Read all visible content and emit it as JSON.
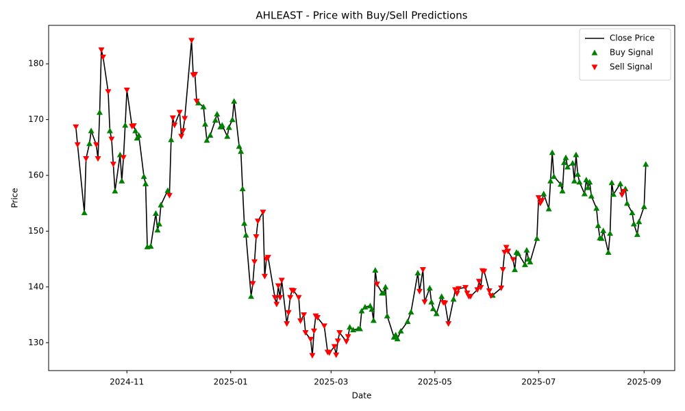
{
  "chart_data": {
    "type": "line",
    "title": "AHLEAST - Price with Buy/Sell Predictions",
    "x_label": "Date",
    "y_label": "Price",
    "xlim": [
      "2024-09-16",
      "2025-09-19"
    ],
    "ylim": [
      125,
      186.9
    ],
    "xticks": [
      {
        "value": "2024-11-01",
        "label": "2024-11"
      },
      {
        "value": "2025-01-01",
        "label": "2025-01"
      },
      {
        "value": "2025-03-01",
        "label": "2025-03"
      },
      {
        "value": "2025-05-01",
        "label": "2025-05"
      },
      {
        "value": "2025-07-01",
        "label": "2025-07"
      },
      {
        "value": "2025-09-01",
        "label": "2025-09"
      }
    ],
    "yticks": [
      130,
      140,
      150,
      160,
      170,
      180
    ],
    "grid": false,
    "legend": "upper right",
    "x": [
      "2024-10-02",
      "2024-10-03",
      "2024-10-07",
      "2024-10-08",
      "2024-10-10",
      "2024-10-11",
      "2024-10-14",
      "2024-10-15",
      "2024-10-16",
      "2024-10-17",
      "2024-10-18",
      "2024-10-21",
      "2024-10-22",
      "2024-10-23",
      "2024-10-24",
      "2024-10-25",
      "2024-10-28",
      "2024-10-29",
      "2024-10-30",
      "2024-10-31",
      "2024-11-01",
      "2024-11-04",
      "2024-11-05",
      "2024-11-06",
      "2024-11-07",
      "2024-11-08",
      "2024-11-11",
      "2024-11-12",
      "2024-11-13",
      "2024-11-15",
      "2024-11-18",
      "2024-11-19",
      "2024-11-20",
      "2024-11-21",
      "2024-11-25",
      "2024-11-26",
      "2024-11-27",
      "2024-11-28",
      "2024-11-29",
      "2024-12-02",
      "2024-12-03",
      "2024-12-04",
      "2024-12-05",
      "2024-12-09",
      "2024-12-10",
      "2024-12-11",
      "2024-12-12",
      "2024-12-13",
      "2024-12-16",
      "2024-12-17",
      "2024-12-18",
      "2024-12-20",
      "2024-12-23",
      "2024-12-24",
      "2024-12-26",
      "2024-12-27",
      "2024-12-30",
      "2024-12-31",
      "2025-01-02",
      "2025-01-03",
      "2025-01-06",
      "2025-01-07",
      "2025-01-08",
      "2025-01-09",
      "2025-01-10",
      "2025-01-13",
      "2025-01-14",
      "2025-01-15",
      "2025-01-16",
      "2025-01-17",
      "2025-01-20",
      "2025-01-21",
      "2025-01-22",
      "2025-01-23",
      "2025-01-27",
      "2025-01-28",
      "2025-01-29",
      "2025-01-30",
      "2025-01-31",
      "2025-02-03",
      "2025-02-04",
      "2025-02-05",
      "2025-02-06",
      "2025-02-07",
      "2025-02-10",
      "2025-02-11",
      "2025-02-13",
      "2025-02-14",
      "2025-02-17",
      "2025-02-18",
      "2025-02-19",
      "2025-02-20",
      "2025-02-21",
      "2025-02-25",
      "2025-02-27",
      "2025-02-28",
      "2025-03-03",
      "2025-03-04",
      "2025-03-05",
      "2025-03-06",
      "2025-03-10",
      "2025-03-11",
      "2025-03-12",
      "2025-03-14",
      "2025-03-17",
      "2025-03-18",
      "2025-03-19",
      "2025-03-21",
      "2025-03-24",
      "2025-03-25",
      "2025-03-26",
      "2025-03-27",
      "2025-03-28",
      "2025-03-31",
      "2025-04-01",
      "2025-04-02",
      "2025-04-03",
      "2025-04-07",
      "2025-04-08",
      "2025-04-09",
      "2025-04-11",
      "2025-04-15",
      "2025-04-17",
      "2025-04-21",
      "2025-04-22",
      "2025-04-24",
      "2025-04-25",
      "2025-04-28",
      "2025-04-29",
      "2025-04-30",
      "2025-05-02",
      "2025-05-05",
      "2025-05-06",
      "2025-05-07",
      "2025-05-09",
      "2025-05-12",
      "2025-05-13",
      "2025-05-14",
      "2025-05-15",
      "2025-05-19",
      "2025-05-20",
      "2025-05-21",
      "2025-05-22",
      "2025-05-26",
      "2025-05-27",
      "2025-05-28",
      "2025-05-29",
      "2025-05-30",
      "2025-06-02",
      "2025-06-03",
      "2025-06-04",
      "2025-06-09",
      "2025-06-10",
      "2025-06-11",
      "2025-06-12",
      "2025-06-13",
      "2025-06-16",
      "2025-06-17",
      "2025-06-18",
      "2025-06-19",
      "2025-06-23",
      "2025-06-24",
      "2025-06-25",
      "2025-06-26",
      "2025-06-30",
      "2025-07-01",
      "2025-07-02",
      "2025-07-03",
      "2025-07-04",
      "2025-07-07",
      "2025-07-08",
      "2025-07-09",
      "2025-07-10",
      "2025-07-14",
      "2025-07-15",
      "2025-07-16",
      "2025-07-17",
      "2025-07-18",
      "2025-07-21",
      "2025-07-22",
      "2025-07-23",
      "2025-07-24",
      "2025-07-25",
      "2025-07-28",
      "2025-07-29",
      "2025-07-30",
      "2025-07-31",
      "2025-08-01",
      "2025-08-04",
      "2025-08-05",
      "2025-08-06",
      "2025-08-07",
      "2025-08-08",
      "2025-08-11",
      "2025-08-12",
      "2025-08-13",
      "2025-08-14",
      "2025-08-18",
      "2025-08-19",
      "2025-08-20",
      "2025-08-21",
      "2025-08-22",
      "2025-08-25",
      "2025-08-26",
      "2025-08-28",
      "2025-08-29",
      "2025-09-01",
      "2025-09-02"
    ],
    "series": [
      {
        "name": "Close Price",
        "type": "line",
        "color": "#000000",
        "values": [
          168.7,
          165.5,
          153.3,
          163,
          165.7,
          168,
          165.5,
          163,
          171.3,
          182.5,
          181.2,
          175,
          168,
          166.5,
          162,
          157.2,
          163.7,
          159,
          163.2,
          169,
          175.3,
          168.8,
          168.9,
          168,
          166.7,
          167.2,
          159.8,
          158.5,
          147.2,
          147.3,
          153.2,
          150.2,
          151.3,
          154.7,
          157.3,
          156.4,
          166.4,
          170.3,
          169,
          171.3,
          167,
          168,
          170.2,
          184.2,
          178,
          178.1,
          173.3,
          173,
          172.3,
          169.2,
          166.3,
          167.2,
          169.9,
          171,
          168.7,
          169,
          167,
          168.6,
          170,
          173.3,
          165.2,
          164.3,
          157.6,
          151.4,
          149.3,
          138.3,
          140.6,
          144.5,
          149,
          151.8,
          153.4,
          141.9,
          145,
          145.3,
          138.1,
          136.9,
          140.2,
          138.1,
          141.2,
          133.4,
          135.4,
          138.1,
          139.4,
          139.3,
          138.1,
          133.9,
          135,
          131.8,
          130.6,
          127.7,
          132.1,
          134.8,
          134.5,
          133,
          128.3,
          128.2,
          129.3,
          127.8,
          130.3,
          131.8,
          130.2,
          131.1,
          132.8,
          132.3,
          132.5,
          132.5,
          135.7,
          136.4,
          136.6,
          136,
          134,
          143,
          140.5,
          138.9,
          138.9,
          140,
          134.8,
          131,
          131.4,
          130.7,
          132.1,
          133.8,
          135.5,
          142.5,
          139.2,
          143.1,
          137.3,
          139.8,
          137.3,
          136.1,
          135.2,
          138.3,
          137.2,
          137.1,
          133.4,
          137.8,
          139.5,
          138.8,
          139.7,
          139.9,
          138.9,
          138.3,
          138.3,
          139.5,
          141,
          139.9,
          142.9,
          142.8,
          139.3,
          138.4,
          138.5,
          139.8,
          143.1,
          146.2,
          147.1,
          146.4,
          144.9,
          143.1,
          146.2,
          146,
          144,
          146.6,
          145,
          144.5,
          148.7,
          156,
          155,
          155.5,
          156.7,
          154,
          159,
          164.1,
          159.8,
          158.4,
          157.2,
          162.3,
          163.2,
          161.5,
          162.2,
          159,
          163.7,
          160.2,
          158.8,
          156.7,
          159.2,
          157.8,
          158.8,
          156.3,
          154.1,
          151,
          148.8,
          148.7,
          150.1,
          146.2,
          149.6,
          158.7,
          156.6,
          158.5,
          156.5,
          157.1,
          157.6,
          155,
          153.3,
          151.3,
          149.4,
          151.7,
          154.4,
          162
        ]
      },
      {
        "name": "Buy Signal",
        "type": "scatter",
        "marker": "triangle-up",
        "color": "#008000",
        "values": [
          null,
          null,
          153.3,
          null,
          165.7,
          168,
          null,
          null,
          171.3,
          null,
          null,
          null,
          168,
          null,
          null,
          157.2,
          163.7,
          159,
          null,
          169,
          null,
          null,
          null,
          168,
          166.7,
          167.2,
          159.8,
          158.5,
          147.2,
          147.3,
          153.2,
          150.2,
          151.3,
          154.7,
          157.3,
          null,
          166.4,
          null,
          null,
          null,
          null,
          null,
          null,
          null,
          null,
          null,
          null,
          173,
          172.3,
          169.2,
          166.3,
          167.2,
          169.9,
          171,
          168.7,
          169,
          167,
          168.6,
          170,
          173.3,
          165.2,
          164.3,
          157.6,
          151.4,
          149.3,
          138.3,
          null,
          null,
          null,
          null,
          null,
          null,
          null,
          null,
          null,
          null,
          null,
          null,
          null,
          null,
          null,
          null,
          null,
          null,
          null,
          null,
          null,
          null,
          null,
          null,
          null,
          null,
          null,
          null,
          null,
          null,
          null,
          null,
          null,
          null,
          null,
          null,
          132.8,
          132.3,
          132.5,
          132.5,
          135.7,
          136.4,
          136.6,
          136,
          134,
          143,
          null,
          138.9,
          138.9,
          140,
          134.8,
          131,
          131.4,
          130.7,
          132.1,
          133.8,
          135.5,
          142.5,
          null,
          null,
          null,
          139.8,
          137.3,
          136.1,
          135.2,
          138.3,
          null,
          null,
          null,
          137.8,
          null,
          null,
          null,
          null,
          null,
          null,
          null,
          null,
          null,
          null,
          null,
          null,
          null,
          null,
          138.5,
          null,
          null,
          null,
          null,
          null,
          null,
          143.1,
          146.2,
          146,
          144,
          146.6,
          145,
          144.5,
          148.7,
          null,
          null,
          null,
          156.7,
          154,
          159,
          164.1,
          159.8,
          158.4,
          157.2,
          162.3,
          163.2,
          161.5,
          162.2,
          159,
          163.7,
          160.2,
          158.8,
          156.7,
          159.2,
          157.8,
          158.8,
          156.3,
          154.1,
          151,
          148.8,
          148.7,
          150.1,
          146.2,
          149.6,
          158.7,
          156.6,
          158.5,
          null,
          null,
          157.6,
          155,
          153.3,
          151.3,
          149.4,
          151.7,
          154.4,
          162
        ]
      },
      {
        "name": "Sell Signal",
        "type": "scatter",
        "marker": "triangle-down",
        "color": "#ff0000",
        "values": [
          168.7,
          165.5,
          null,
          163,
          null,
          null,
          165.5,
          163,
          null,
          182.5,
          181.2,
          175,
          null,
          166.5,
          162,
          null,
          null,
          null,
          163.2,
          null,
          175.3,
          168.8,
          168.9,
          null,
          null,
          null,
          null,
          null,
          null,
          null,
          null,
          null,
          null,
          null,
          null,
          156.4,
          null,
          170.3,
          169,
          171.3,
          167,
          168,
          170.2,
          184.2,
          178,
          178.1,
          173.3,
          null,
          null,
          null,
          null,
          null,
          null,
          null,
          null,
          null,
          null,
          null,
          null,
          null,
          null,
          null,
          null,
          null,
          null,
          null,
          140.6,
          144.5,
          149,
          151.8,
          153.4,
          141.9,
          145,
          145.3,
          138.1,
          136.9,
          140.2,
          138.1,
          141.2,
          133.4,
          135.4,
          138.1,
          139.4,
          139.3,
          138.1,
          133.9,
          135,
          131.8,
          130.6,
          127.7,
          132.1,
          134.8,
          134.5,
          133,
          128.3,
          128.2,
          129.3,
          127.8,
          130.3,
          131.8,
          130.2,
          131.1,
          null,
          null,
          null,
          null,
          null,
          null,
          null,
          null,
          null,
          null,
          140.5,
          null,
          null,
          null,
          null,
          null,
          null,
          null,
          null,
          null,
          null,
          null,
          139.2,
          143.1,
          137.3,
          null,
          null,
          null,
          null,
          null,
          137.2,
          137.1,
          133.4,
          null,
          139.5,
          138.8,
          139.7,
          139.9,
          138.9,
          138.3,
          138.3,
          139.5,
          141,
          139.9,
          142.9,
          142.8,
          139.3,
          138.4,
          null,
          139.8,
          143.1,
          146.2,
          147.1,
          146.4,
          144.9,
          null,
          null,
          null,
          null,
          null,
          null,
          null,
          null,
          156,
          155,
          155.5,
          null,
          null,
          null,
          null,
          null,
          null,
          null,
          null,
          null,
          null,
          null,
          null,
          null,
          null,
          null,
          null,
          null,
          null,
          null,
          null,
          null,
          null,
          null,
          null,
          null,
          null,
          null,
          null,
          null,
          null,
          156.5,
          157.1,
          null,
          null,
          null,
          null,
          null,
          null,
          null,
          null
        ]
      }
    ]
  }
}
